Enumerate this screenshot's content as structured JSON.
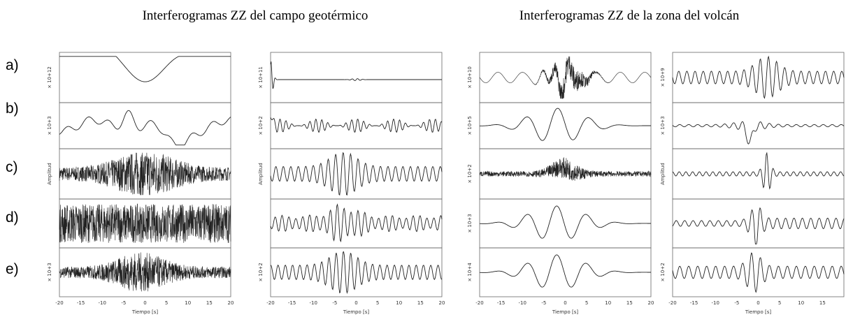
{
  "titles": [
    "Interferogramas ZZ del campo geotérmico",
    "Interferogramas ZZ de la zona del volcán"
  ],
  "row_labels": [
    "a)",
    "b)",
    "c)",
    "d)",
    "e)"
  ],
  "columns": [
    {
      "y_labels": [
        "× 10+12",
        "× 10+3",
        "Amplitud",
        null,
        "× 10+3"
      ],
      "x_ticks": [
        "-20",
        "-15",
        "-10",
        "-5",
        "0",
        "5",
        "10",
        "15",
        "20"
      ],
      "x_label": "Tiempo [s]"
    },
    {
      "y_labels": [
        "× 10+11",
        "× 10+2",
        "Amplitud",
        null,
        "× 10+2"
      ],
      "x_ticks": [
        "-20",
        "-15",
        "-10",
        "-5",
        "0",
        "5",
        "10",
        "15",
        "20"
      ],
      "x_label": "Tiempo [s]"
    },
    {
      "y_labels": [
        "× 10+10",
        "× 10+5",
        "× 10+2",
        "× 10+3",
        "× 10+4"
      ],
      "x_ticks": [
        "-20",
        "-15",
        "-10",
        "-5",
        "0",
        "5",
        "10",
        "15",
        "20"
      ],
      "x_label": "Tiempo [s]"
    },
    {
      "y_labels": [
        "× 10+9",
        "× 10+3",
        "Amplitud",
        null,
        "× 10+2"
      ],
      "x_ticks": [
        "-20",
        "-15",
        "-10",
        "-5",
        "0",
        "5",
        "10",
        "15"
      ],
      "x_label": "Tiempo [s]"
    }
  ]
}
